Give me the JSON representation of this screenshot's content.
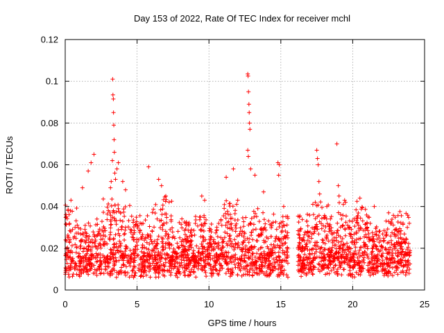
{
  "chart_data": {
    "type": "scatter",
    "title": "Day 153 of 2022, Rate Of TEC Index for receiver mchl",
    "xlabel": "GPS time / hours",
    "ylabel": "ROTI / TECUs",
    "xlim": [
      0,
      25
    ],
    "ylim": [
      0,
      0.12
    ],
    "xticks": [
      0,
      5,
      10,
      15,
      20,
      25
    ],
    "yticks": [
      0,
      0.02,
      0.04,
      0.06,
      0.08,
      0.1,
      0.12
    ],
    "xtick_labels": [
      "0",
      "5",
      "10",
      "15",
      "20",
      "25"
    ],
    "ytick_labels": [
      "0",
      "0.02",
      "0.04",
      "0.06",
      "0.08",
      "0.1",
      "0.12"
    ],
    "grid": true,
    "marker": "plus",
    "series_color": "#ff0000",
    "data_gap_hours": [
      15.5,
      16.2
    ],
    "series": [
      {
        "name": "ROTI",
        "x": [
          3.3,
          3.32,
          3.35,
          3.36,
          3.38,
          3.4,
          3.42,
          3.45,
          3.5,
          3.28,
          3.2,
          3.15,
          3.6,
          3.7,
          4.0,
          4.2,
          2.0,
          1.8,
          1.6,
          1.2,
          0.4,
          0.2,
          6.5,
          6.7,
          7.0,
          5.8,
          9.5,
          9.7,
          11.2,
          11.7,
          12.0,
          12.7,
          12.72,
          12.75,
          12.78,
          12.8,
          12.82,
          12.85,
          12.7,
          12.74,
          12.9,
          13.2,
          13.8,
          14.8,
          14.9,
          14.85,
          15.2,
          17.5,
          17.55,
          17.6,
          17.65,
          17.7,
          17.4,
          18.9,
          19.0,
          19.5,
          20.5,
          21.5,
          22.5,
          23.5,
          23.8,
          16.3,
          16.8,
          18.2
        ],
        "y": [
          0.101,
          0.0935,
          0.0915,
          0.085,
          0.079,
          0.072,
          0.066,
          0.056,
          0.053,
          0.062,
          0.052,
          0.049,
          0.058,
          0.061,
          0.052,
          0.048,
          0.065,
          0.061,
          0.057,
          0.049,
          0.043,
          0.038,
          0.053,
          0.05,
          0.045,
          0.059,
          0.045,
          0.043,
          0.054,
          0.058,
          0.043,
          0.1035,
          0.1025,
          0.095,
          0.089,
          0.085,
          0.08,
          0.077,
          0.067,
          0.064,
          0.058,
          0.055,
          0.047,
          0.061,
          0.06,
          0.055,
          0.04,
          0.067,
          0.063,
          0.06,
          0.052,
          0.046,
          0.042,
          0.07,
          0.05,
          0.042,
          0.044,
          0.04,
          0.037,
          0.032,
          0.03,
          0.035,
          0.033,
          0.04
        ]
      }
    ]
  }
}
